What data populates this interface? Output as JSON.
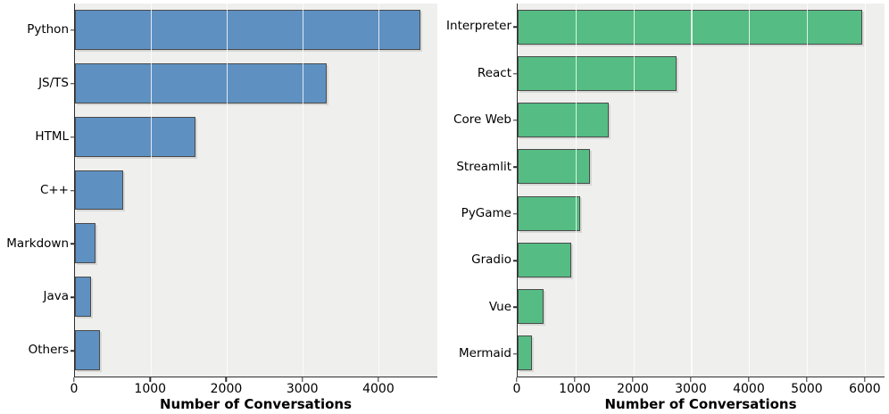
{
  "figure": {
    "background": "#ffffff",
    "plot_background": "#efefed",
    "spine_color": "#2f2f2f",
    "bar_edge_color": "#4a4a4a",
    "grid_color": "rgba(255,255,255,0.8)"
  },
  "chart_data": [
    {
      "type": "bar",
      "orientation": "horizontal",
      "title": "",
      "xlabel": "Number of Conversations",
      "ylabel": "",
      "categories": [
        "Python",
        "JS/TS",
        "HTML",
        "C++",
        "Markdown",
        "Java",
        "Others"
      ],
      "values": [
        4550,
        3320,
        1590,
        640,
        270,
        210,
        325
      ],
      "bar_color": "#5e91c1",
      "xticks": [
        0,
        1000,
        2000,
        3000,
        4000
      ],
      "xlim": [
        0,
        4775
      ],
      "grid": true,
      "legend": false
    },
    {
      "type": "bar",
      "orientation": "horizontal",
      "title": "",
      "xlabel": "Number of Conversations",
      "ylabel": "",
      "categories": [
        "Interpreter",
        "React",
        "Core Web",
        "Streamlit",
        "PyGame",
        "Gradio",
        "Vue",
        "Mermaid"
      ],
      "values": [
        5950,
        2750,
        1580,
        1250,
        1080,
        920,
        450,
        250
      ],
      "bar_color": "#55bc83",
      "xticks": [
        0,
        1000,
        2000,
        3000,
        4000,
        5000,
        6000
      ],
      "xlim": [
        0,
        6340
      ],
      "grid": true,
      "legend": false
    }
  ]
}
